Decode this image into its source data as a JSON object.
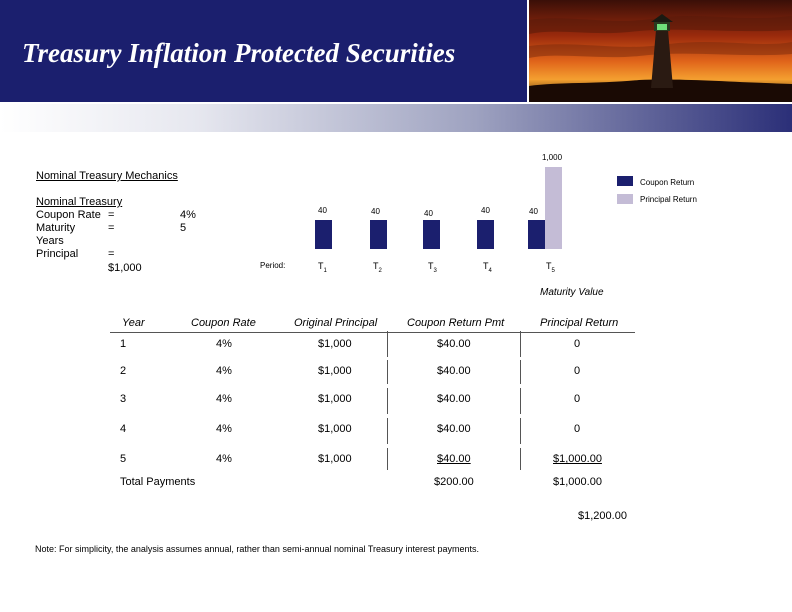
{
  "slide": {
    "title": "Treasury Inflation Protected Securities"
  },
  "section": {
    "heading": "Nominal Treasury Mechanics"
  },
  "terms": {
    "heading": "Nominal Treasury",
    "labels": [
      "Coupon Rate",
      "Maturity Years",
      "Principal"
    ],
    "equals": "=",
    "coupon_rate_value": "4%",
    "maturity_value": "5",
    "principal_value": "$1,000"
  },
  "chart_data": {
    "type": "bar",
    "period_label": "Period:",
    "categories": [
      "T1",
      "T2",
      "T3",
      "T4",
      "T5"
    ],
    "subscripts": [
      "1",
      "2",
      "3",
      "4",
      "5"
    ],
    "series": [
      {
        "name": "Coupon Return",
        "values": [
          40,
          40,
          40,
          40,
          40
        ]
      },
      {
        "name": "Principal Return",
        "values": [
          0,
          0,
          0,
          0,
          1000
        ]
      }
    ],
    "data_labels": [
      "40",
      "40",
      "40",
      "40",
      "40"
    ],
    "principal_label": "1,000",
    "legend": [
      "Coupon Return",
      "Principal Return"
    ],
    "xlabel": "Maturity Value",
    "colors": {
      "coupon": "#1b1f6e",
      "principal": "#c4bcd6"
    }
  },
  "table": {
    "headers": [
      "Year",
      "Coupon Rate",
      "Original Principal",
      "Coupon Return Pmt",
      "Principal Return"
    ],
    "rows": [
      [
        "1",
        "4%",
        "$1,000",
        "$40.00",
        "0"
      ],
      [
        "2",
        "4%",
        "$1,000",
        "$40.00",
        "0"
      ],
      [
        "3",
        "4%",
        "$1,000",
        "$40.00",
        "0"
      ],
      [
        "4",
        "4%",
        "$1,000",
        "$40.00",
        "0"
      ],
      [
        "5",
        "4%",
        "$1,000",
        "$40.00",
        "$1,000.00"
      ]
    ],
    "total_label": "Total Payments",
    "total_coupon": "$200.00",
    "total_principal": "$1,000.00",
    "grand_total": "$1,200.00"
  },
  "note": "Note: For simplicity, the analysis assumes annual, rather than semi-annual nominal Treasury interest payments."
}
